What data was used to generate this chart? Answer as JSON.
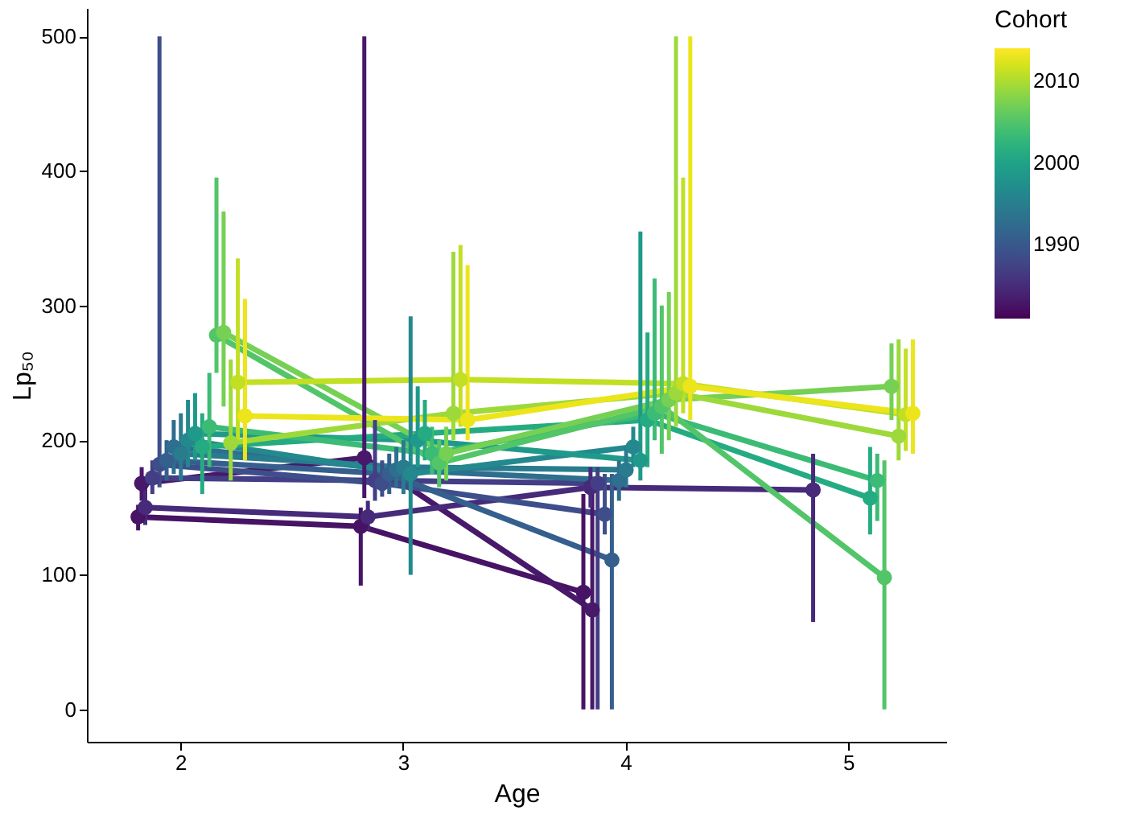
{
  "chart_data": {
    "type": "line",
    "xlabel": "Age",
    "ylabel": "Lp₅₀",
    "clabel": "Cohort",
    "clim": [
      1981,
      2014
    ],
    "cticks": [
      1990,
      2000,
      2010
    ],
    "xlim": [
      1.58,
      5.44
    ],
    "xticks": [
      2,
      3,
      4,
      5
    ],
    "ylim": [
      -24,
      521
    ],
    "yticks": [
      0,
      100,
      200,
      300,
      400,
      500
    ],
    "grid": false,
    "marker": "circle",
    "line_style": "solid",
    "series": [
      {
        "color": "#471365",
        "x": [
          1.81,
          2.81,
          3.81
        ],
        "values": [
          143,
          136,
          87
        ],
        "errors": [
          [
            133,
            152
          ],
          [
            92,
            150
          ],
          [
            0,
            160
          ]
        ]
      },
      {
        "color": "#48186a",
        "x": [
          1.826,
          2.826,
          3.85
        ],
        "values": [
          168,
          187,
          74
        ],
        "errors": [
          [
            155,
            180
          ],
          [
            157,
            500
          ],
          [
            0,
            160
          ]
        ]
      },
      {
        "color": "#472a7a",
        "x": [
          1.842,
          2.842,
          3.842,
          4.842
        ],
        "values": [
          150,
          143,
          165,
          163
        ],
        "errors": [
          [
            137,
            165
          ],
          [
            133,
            155
          ],
          [
            150,
            180
          ],
          [
            65,
            190
          ]
        ]
      },
      {
        "color": "#433e85",
        "x": [
          1.874,
          2.874,
          3.874
        ],
        "values": [
          172,
          170,
          168
        ],
        "errors": [
          [
            160,
            185
          ],
          [
            155,
            215
          ],
          [
            0,
            180
          ]
        ]
      },
      {
        "color": "#3d4e8a",
        "x": [
          1.906,
          2.906,
          3.906
        ],
        "values": [
          182,
          168,
          145
        ],
        "errors": [
          [
            165,
            500
          ],
          [
            158,
            185
          ],
          [
            130,
            175
          ]
        ]
      },
      {
        "color": "#355f8d",
        "x": [
          1.938,
          2.938,
          3.938
        ],
        "values": [
          185,
          175,
          111
        ],
        "errors": [
          [
            170,
            200
          ],
          [
            160,
            190
          ],
          [
            0,
            175
          ]
        ]
      },
      {
        "color": "#2e6e8e",
        "x": [
          1.97,
          2.97,
          3.97
        ],
        "values": [
          195,
          178,
          170
        ],
        "errors": [
          [
            175,
            215
          ],
          [
            165,
            195
          ],
          [
            155,
            185
          ]
        ]
      },
      {
        "color": "#297b8e",
        "x": [
          2.002,
          3.002,
          4.002
        ],
        "values": [
          190,
          180,
          178
        ],
        "errors": [
          [
            170,
            220
          ],
          [
            160,
            200
          ],
          [
            165,
            195
          ]
        ]
      },
      {
        "color": "#23898e",
        "x": [
          2.034,
          3.034,
          4.034
        ],
        "values": [
          200,
          175,
          195
        ],
        "errors": [
          [
            180,
            230
          ],
          [
            100,
            292
          ],
          [
            180,
            210
          ]
        ]
      },
      {
        "color": "#1f9a8a",
        "x": [
          2.066,
          3.066,
          4.066
        ],
        "values": [
          205,
          200,
          185
        ],
        "errors": [
          [
            185,
            235
          ],
          [
            180,
            240
          ],
          [
            170,
            355
          ]
        ]
      },
      {
        "color": "#25ab82",
        "x": [
          2.098,
          3.098,
          4.098,
          5.098
        ],
        "values": [
          195,
          205,
          215,
          157
        ],
        "errors": [
          [
            160,
            220
          ],
          [
            185,
            230
          ],
          [
            180,
            280
          ],
          [
            130,
            195
          ]
        ]
      },
      {
        "color": "#3bbb75",
        "x": [
          2.13,
          3.13,
          4.13,
          5.13
        ],
        "values": [
          210,
          190,
          220,
          170
        ],
        "errors": [
          [
            180,
            250
          ],
          [
            175,
            210
          ],
          [
            200,
            320
          ],
          [
            140,
            190
          ]
        ]
      },
      {
        "color": "#52c569",
        "x": [
          2.162,
          3.162,
          4.162,
          5.162
        ],
        "values": [
          278,
          183,
          225,
          98
        ],
        "errors": [
          [
            250,
            395
          ],
          [
            165,
            200
          ],
          [
            190,
            300
          ],
          [
            0,
            185
          ]
        ]
      },
      {
        "color": "#75d054",
        "x": [
          2.194,
          3.194,
          4.194,
          5.194
        ],
        "values": [
          280,
          190,
          230,
          240
        ],
        "errors": [
          [
            225,
            370
          ],
          [
            170,
            210
          ],
          [
            200,
            310
          ],
          [
            215,
            272
          ]
        ]
      },
      {
        "color": "#9dd93b",
        "x": [
          2.226,
          3.226,
          4.226,
          5.226
        ],
        "values": [
          198,
          220,
          235,
          203
        ],
        "errors": [
          [
            170,
            260
          ],
          [
            200,
            340
          ],
          [
            210,
            500
          ],
          [
            185,
            275
          ]
        ]
      },
      {
        "color": "#c2df23",
        "x": [
          2.258,
          3.258,
          4.258,
          5.258
        ],
        "values": [
          243,
          245,
          242,
          219
        ],
        "errors": [
          [
            200,
            335
          ],
          [
            210,
            345
          ],
          [
            220,
            395
          ],
          [
            192,
            268
          ]
        ]
      },
      {
        "color": "#ece51b",
        "x": [
          2.29,
          3.29,
          4.29,
          5.29
        ],
        "values": [
          218,
          215,
          240,
          220
        ],
        "errors": [
          [
            185,
            305
          ],
          [
            200,
            330
          ],
          [
            215,
            500
          ],
          [
            190,
            275
          ]
        ]
      }
    ]
  }
}
